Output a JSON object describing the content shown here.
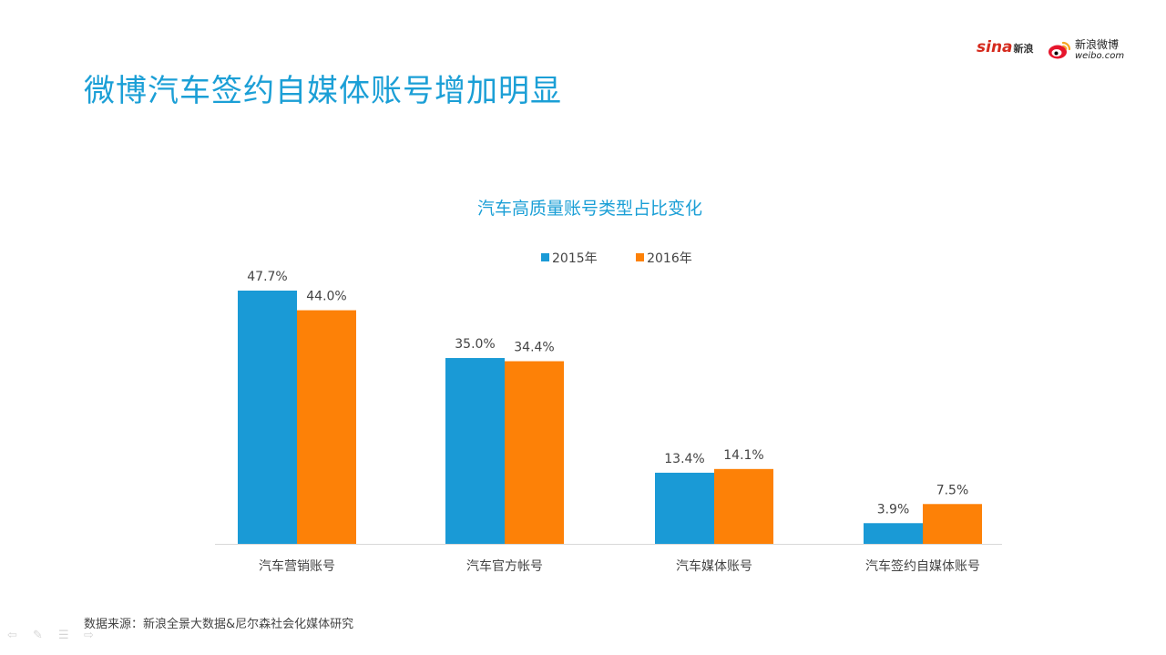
{
  "header": {
    "title": "微博汽车签约自媒体账号增加明显",
    "logos": {
      "sina_text": "sina",
      "sina_cn": "新浪",
      "weibo_cn": "新浪微博",
      "weibo_en": "weibo.com"
    }
  },
  "footer": {
    "source": "数据来源：新浪全景大数据&尼尔森社会化媒体研究"
  },
  "colors": {
    "title": "#1b9fd6",
    "series_2015": "#1a9ad6",
    "series_2016": "#fd8107"
  },
  "chart_data": {
    "type": "bar",
    "title": "汽车高质量账号类型占比变化",
    "xlabel": "",
    "ylabel": "",
    "ylim": [
      0,
      50
    ],
    "grid": false,
    "legend_position": "top",
    "categories": [
      "汽车营销账号",
      "汽车官方帐号",
      "汽车媒体账号",
      "汽车签约自媒体账号"
    ],
    "series": [
      {
        "name": "2015年",
        "color": "#1a9ad6",
        "values": [
          47.7,
          35.0,
          13.4,
          3.9
        ],
        "labels": [
          "47.7%",
          "35.0%",
          "13.4%",
          "3.9%"
        ]
      },
      {
        "name": "2016年",
        "color": "#fd8107",
        "values": [
          44.0,
          34.4,
          14.1,
          7.5
        ],
        "labels": [
          "44.0%",
          "34.4%",
          "14.1%",
          "7.5%"
        ]
      }
    ]
  }
}
